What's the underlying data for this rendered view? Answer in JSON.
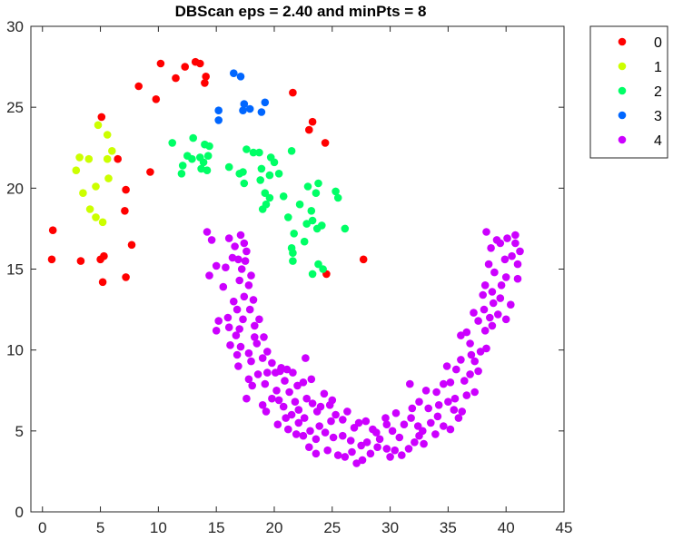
{
  "chart_data": {
    "type": "scatter",
    "title": "DBScan eps = 2.40 and minPts = 8",
    "xlabel": "",
    "ylabel": "",
    "xlim": [
      -1,
      45
    ],
    "ylim": [
      0,
      30
    ],
    "xticks": [
      "0",
      "5",
      "10",
      "15",
      "20",
      "25",
      "30",
      "35",
      "40",
      "45"
    ],
    "yticks": [
      "0",
      "5",
      "10",
      "15",
      "20",
      "25",
      "30"
    ],
    "grid": false,
    "legend_position": "outside-top-right",
    "series": [
      {
        "name": "0",
        "color": "#ff0000",
        "points": [
          [
            10.2,
            27.7
          ],
          [
            11.5,
            26.8
          ],
          [
            12.3,
            27.5
          ],
          [
            13.2,
            27.8
          ],
          [
            13.6,
            27.7
          ],
          [
            14.1,
            26.9
          ],
          [
            14.0,
            26.5
          ],
          [
            8.3,
            26.3
          ],
          [
            9.8,
            25.5
          ],
          [
            21.6,
            25.9
          ],
          [
            23.0,
            23.6
          ],
          [
            23.3,
            24.1
          ],
          [
            24.4,
            22.8
          ],
          [
            5.1,
            24.4
          ],
          [
            6.5,
            21.8
          ],
          [
            9.3,
            21.0
          ],
          [
            7.2,
            19.9
          ],
          [
            7.1,
            18.6
          ],
          [
            7.7,
            16.5
          ],
          [
            7.2,
            14.5
          ],
          [
            5.3,
            15.8
          ],
          [
            5.0,
            15.6
          ],
          [
            5.2,
            14.2
          ],
          [
            3.3,
            15.5
          ],
          [
            0.9,
            17.4
          ],
          [
            0.8,
            15.6
          ],
          [
            24.5,
            14.7
          ],
          [
            27.7,
            15.6
          ]
        ]
      },
      {
        "name": "1",
        "color": "#ccff00",
        "points": [
          [
            4.8,
            23.9
          ],
          [
            5.6,
            23.3
          ],
          [
            3.2,
            21.9
          ],
          [
            4.0,
            21.8
          ],
          [
            6.0,
            22.3
          ],
          [
            5.6,
            21.8
          ],
          [
            2.9,
            21.1
          ],
          [
            5.7,
            20.6
          ],
          [
            4.6,
            20.1
          ],
          [
            3.5,
            19.7
          ],
          [
            4.1,
            18.7
          ],
          [
            4.6,
            18.2
          ],
          [
            5.2,
            17.9
          ]
        ]
      },
      {
        "name": "2",
        "color": "#00ff66",
        "points": [
          [
            11.2,
            22.8
          ],
          [
            13.0,
            23.1
          ],
          [
            14.0,
            22.7
          ],
          [
            14.4,
            22.6
          ],
          [
            12.5,
            22.0
          ],
          [
            12.9,
            21.8
          ],
          [
            13.6,
            21.9
          ],
          [
            13.9,
            21.6
          ],
          [
            14.3,
            22.0
          ],
          [
            12.1,
            21.4
          ],
          [
            13.7,
            21.2
          ],
          [
            14.2,
            21.1
          ],
          [
            12.0,
            20.9
          ],
          [
            17.6,
            22.4
          ],
          [
            18.2,
            22.2
          ],
          [
            18.7,
            22.2
          ],
          [
            19.7,
            21.9
          ],
          [
            20.0,
            21.6
          ],
          [
            21.5,
            22.3
          ],
          [
            16.1,
            21.3
          ],
          [
            17.3,
            21.0
          ],
          [
            18.9,
            21.2
          ],
          [
            19.6,
            20.8
          ],
          [
            17.0,
            20.9
          ],
          [
            20.4,
            20.9
          ],
          [
            17.4,
            20.3
          ],
          [
            18.8,
            20.5
          ],
          [
            19.2,
            19.7
          ],
          [
            19.6,
            19.4
          ],
          [
            20.8,
            19.5
          ],
          [
            22.9,
            20.1
          ],
          [
            23.8,
            20.3
          ],
          [
            23.6,
            19.7
          ],
          [
            25.3,
            19.8
          ],
          [
            25.5,
            19.4
          ],
          [
            19.0,
            18.7
          ],
          [
            19.3,
            19.0
          ],
          [
            22.2,
            19.0
          ],
          [
            23.2,
            18.6
          ],
          [
            21.2,
            18.2
          ],
          [
            22.8,
            17.8
          ],
          [
            23.3,
            18.0
          ],
          [
            23.7,
            17.5
          ],
          [
            24.1,
            17.7
          ],
          [
            26.1,
            17.5
          ],
          [
            21.7,
            17.2
          ],
          [
            22.6,
            16.7
          ],
          [
            21.5,
            16.3
          ],
          [
            21.6,
            16.0
          ],
          [
            21.6,
            15.5
          ],
          [
            23.8,
            15.3
          ],
          [
            24.2,
            15.0
          ],
          [
            23.3,
            14.7
          ]
        ]
      },
      {
        "name": "3",
        "color": "#0066ff",
        "points": [
          [
            16.5,
            27.1
          ],
          [
            17.1,
            26.9
          ],
          [
            15.2,
            24.8
          ],
          [
            15.2,
            24.2
          ],
          [
            17.4,
            25.2
          ],
          [
            17.3,
            24.8
          ],
          [
            17.9,
            24.9
          ],
          [
            18.9,
            24.7
          ],
          [
            19.2,
            25.3
          ]
        ]
      },
      {
        "name": "4",
        "color": "#cc00ff",
        "points": [
          [
            14.2,
            17.3
          ],
          [
            14.6,
            16.8
          ],
          [
            16.1,
            16.9
          ],
          [
            16.6,
            16.4
          ],
          [
            17.1,
            17.1
          ],
          [
            17.4,
            16.6
          ],
          [
            16.4,
            15.7
          ],
          [
            16.9,
            15.6
          ],
          [
            17.5,
            15.5
          ],
          [
            17.2,
            15.0
          ],
          [
            14.4,
            14.6
          ],
          [
            15.0,
            15.2
          ],
          [
            17.0,
            14.3
          ],
          [
            17.8,
            14.0
          ],
          [
            18.0,
            14.6
          ],
          [
            17.4,
            13.3
          ],
          [
            16.5,
            13.0
          ],
          [
            16.8,
            12.5
          ],
          [
            17.9,
            12.5
          ],
          [
            16.0,
            12.0
          ],
          [
            17.3,
            11.9
          ],
          [
            15.2,
            11.8
          ],
          [
            16.1,
            11.4
          ],
          [
            17.0,
            11.3
          ],
          [
            18.3,
            11.5
          ],
          [
            15.0,
            11.2
          ],
          [
            16.7,
            10.9
          ],
          [
            18.3,
            10.8
          ],
          [
            16.2,
            10.3
          ],
          [
            17.1,
            10.2
          ],
          [
            18.5,
            10.4
          ],
          [
            16.8,
            9.7
          ],
          [
            17.8,
            9.8
          ],
          [
            18.0,
            9.3
          ],
          [
            19.4,
            9.9
          ],
          [
            19.8,
            9.2
          ],
          [
            20.6,
            8.9
          ],
          [
            20.1,
            8.6
          ],
          [
            17.8,
            8.2
          ],
          [
            18.6,
            8.5
          ],
          [
            19.4,
            8.6
          ],
          [
            20.5,
            8.7
          ],
          [
            21.1,
            8.8
          ],
          [
            21.6,
            8.6
          ],
          [
            18.1,
            7.8
          ],
          [
            19.2,
            7.9
          ],
          [
            20.2,
            7.5
          ],
          [
            21.3,
            7.4
          ],
          [
            22.0,
            7.8
          ],
          [
            22.5,
            8.0
          ],
          [
            19.8,
            7.0
          ],
          [
            20.4,
            6.9
          ],
          [
            21.8,
            6.8
          ],
          [
            22.8,
            7.0
          ],
          [
            23.3,
            6.7
          ],
          [
            19.0,
            6.6
          ],
          [
            20.8,
            6.5
          ],
          [
            21.5,
            6.0
          ],
          [
            22.1,
            5.5
          ],
          [
            22.6,
            5.8
          ],
          [
            23.7,
            6.2
          ],
          [
            24.0,
            6.5
          ],
          [
            24.8,
            6.6
          ],
          [
            25.3,
            6.0
          ],
          [
            25.9,
            5.7
          ],
          [
            20.3,
            5.4
          ],
          [
            21.2,
            5.1
          ],
          [
            21.9,
            4.8
          ],
          [
            22.5,
            4.7
          ],
          [
            23.1,
            5.0
          ],
          [
            23.6,
            4.5
          ],
          [
            24.4,
            4.9
          ],
          [
            25.1,
            4.6
          ],
          [
            25.9,
            4.7
          ],
          [
            26.6,
            4.4
          ],
          [
            27.3,
            5.5
          ],
          [
            27.9,
            5.6
          ],
          [
            28.5,
            5.1
          ],
          [
            28.8,
            4.9
          ],
          [
            29.7,
            5.4
          ],
          [
            30.2,
            5.0
          ],
          [
            31.2,
            5.4
          ],
          [
            31.8,
            5.8
          ],
          [
            32.4,
            5.3
          ],
          [
            32.8,
            5.0
          ],
          [
            33.5,
            5.5
          ],
          [
            34.1,
            5.9
          ],
          [
            34.6,
            5.3
          ],
          [
            23.0,
            4.0
          ],
          [
            23.6,
            3.6
          ],
          [
            24.6,
            3.8
          ],
          [
            25.5,
            3.5
          ],
          [
            26.1,
            3.4
          ],
          [
            26.7,
            3.7
          ],
          [
            27.6,
            3.2
          ],
          [
            27.1,
            3.0
          ],
          [
            28.3,
            3.6
          ],
          [
            28.9,
            4.0
          ],
          [
            29.7,
            3.9
          ],
          [
            30.4,
            3.8
          ],
          [
            31.0,
            3.5
          ],
          [
            31.6,
            3.9
          ],
          [
            32.1,
            4.3
          ],
          [
            32.9,
            4.2
          ],
          [
            33.9,
            4.8
          ],
          [
            35.2,
            5.1
          ],
          [
            35.9,
            5.8
          ],
          [
            36.2,
            6.2
          ],
          [
            35.0,
            6.8
          ],
          [
            35.6,
            7.0
          ],
          [
            36.6,
            7.2
          ],
          [
            37.3,
            7.4
          ],
          [
            34.0,
            7.4
          ],
          [
            34.6,
            7.9
          ],
          [
            33.1,
            7.5
          ],
          [
            32.5,
            6.8
          ],
          [
            31.9,
            6.4
          ],
          [
            30.5,
            6.1
          ],
          [
            29.6,
            5.8
          ],
          [
            36.4,
            8.1
          ],
          [
            36.9,
            8.5
          ],
          [
            37.6,
            8.7
          ],
          [
            35.2,
            8.0
          ],
          [
            35.7,
            8.8
          ],
          [
            36.1,
            9.4
          ],
          [
            37.3,
            9.3
          ],
          [
            37.8,
            9.9
          ],
          [
            38.3,
            10.1
          ],
          [
            36.9,
            10.4
          ],
          [
            38.2,
            11.2
          ],
          [
            37.6,
            11.8
          ],
          [
            38.6,
            12.0
          ],
          [
            38.1,
            12.5
          ],
          [
            38.9,
            12.9
          ],
          [
            38.0,
            13.4
          ],
          [
            38.8,
            13.6
          ],
          [
            39.5,
            13.2
          ],
          [
            40.4,
            12.8
          ],
          [
            39.3,
            12.2
          ],
          [
            40.0,
            11.9
          ],
          [
            41.0,
            14.4
          ],
          [
            39.0,
            14.8
          ],
          [
            38.5,
            15.3
          ],
          [
            39.9,
            15.6
          ],
          [
            40.5,
            15.8
          ],
          [
            41.2,
            16.1
          ],
          [
            38.7,
            16.3
          ],
          [
            39.5,
            16.6
          ],
          [
            40.1,
            16.9
          ],
          [
            40.8,
            17.1
          ],
          [
            38.3,
            17.3
          ],
          [
            39.2,
            16.8
          ],
          [
            41.0,
            15.3
          ],
          [
            40.0,
            14.5
          ],
          [
            38.2,
            14.0
          ],
          [
            22.7,
            9.5
          ],
          [
            23.2,
            8.2
          ],
          [
            24.3,
            7.3
          ],
          [
            25.0,
            6.9
          ],
          [
            26.3,
            6.2
          ],
          [
            19.1,
            10.8
          ],
          [
            19.3,
            6.2
          ],
          [
            22.1,
            6.3
          ],
          [
            26.9,
            5.2
          ],
          [
            28.0,
            4.3
          ],
          [
            30.8,
            4.6
          ],
          [
            33.3,
            6.4
          ],
          [
            34.9,
            9.0
          ],
          [
            31.7,
            7.9
          ],
          [
            36.6,
            11.1
          ],
          [
            17.6,
            16.1
          ],
          [
            15.8,
            15.1
          ],
          [
            18.2,
            13.1
          ],
          [
            19.0,
            9.5
          ],
          [
            20.9,
            8.1
          ],
          [
            24.9,
            5.6
          ],
          [
            29.1,
            4.5
          ],
          [
            32.5,
            4.7
          ],
          [
            35.5,
            6.3
          ],
          [
            37.0,
            9.7
          ],
          [
            39.6,
            14.0
          ],
          [
            40.8,
            16.6
          ],
          [
            21.0,
            5.8
          ],
          [
            23.9,
            5.3
          ],
          [
            27.5,
            4.1
          ],
          [
            30.0,
            3.4
          ],
          [
            34.2,
            6.6
          ],
          [
            36.1,
            10.9
          ],
          [
            37.2,
            12.3
          ],
          [
            38.8,
            11.5
          ],
          [
            16.9,
            9.0
          ],
          [
            18.7,
            11.9
          ],
          [
            15.6,
            13.9
          ],
          [
            17.6,
            7.0
          ]
        ]
      }
    ]
  }
}
